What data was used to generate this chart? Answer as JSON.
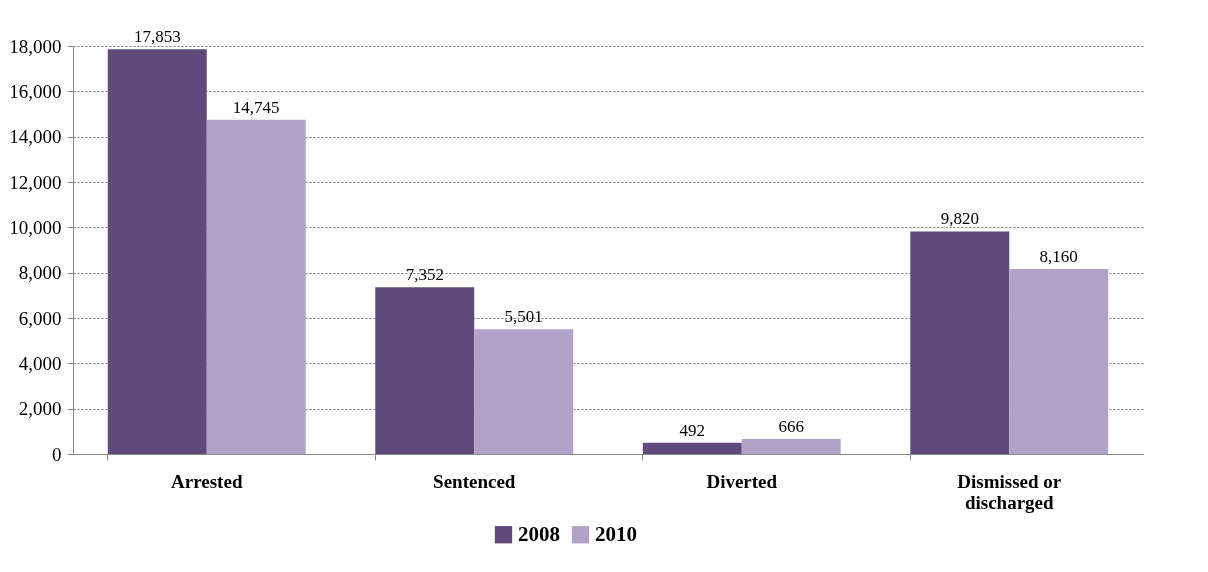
{
  "chart_data": {
    "type": "bar",
    "categories": [
      "Arrested",
      "Sentenced",
      "Diverted",
      "Dismissed or discharged"
    ],
    "series": [
      {
        "name": "2008",
        "color": "#604a7b",
        "values": [
          17853,
          7352,
          492,
          9820
        ],
        "value_labels": [
          "17,853",
          "7,352",
          "492",
          "9,820"
        ]
      },
      {
        "name": "2010",
        "color": "#b3a2c7",
        "values": [
          14745,
          5501,
          666,
          8160
        ],
        "value_labels": [
          "14,745",
          "5,501",
          "666",
          "8,160"
        ]
      }
    ],
    "ylim": [
      0,
      18000
    ],
    "yticks": [
      0,
      {
        "value": 2000,
        "label": "2,000"
      },
      {
        "value": 4000,
        "label": "4,000"
      },
      {
        "value": 6000,
        "label": "6,000"
      },
      {
        "value": 8000,
        "label": "8,000"
      },
      {
        "value": 10000,
        "label": "10,000"
      },
      {
        "value": 12000,
        "label": "12,000"
      },
      {
        "value": 14000,
        "label": "14,000"
      },
      {
        "value": 16000,
        "label": "16,000"
      },
      {
        "value": 18000,
        "label": "18,000"
      }
    ],
    "grid": "y",
    "legend": "bottom"
  }
}
